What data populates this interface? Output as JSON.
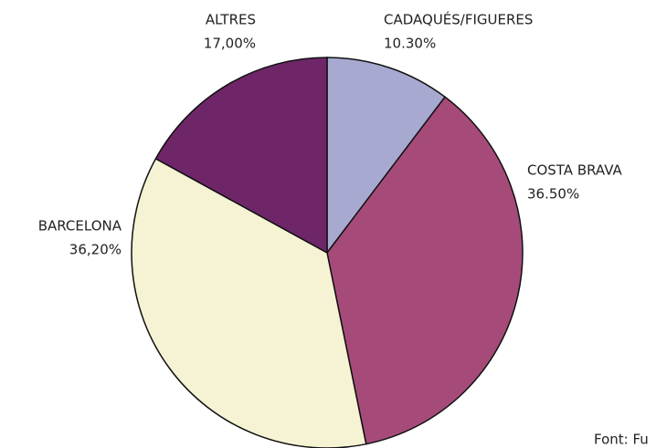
{
  "chart_data": {
    "type": "pie",
    "categories": [
      "CADAQUÉS/FIGUERES",
      "COSTA BRAVA",
      "BARCELONA",
      "ALTRES"
    ],
    "values": [
      10.3,
      36.5,
      36.2,
      17.0
    ],
    "value_labels": [
      "10.30%",
      "36.50%",
      "36,20%",
      "17,00%"
    ],
    "colors": [
      "#a8a9d1",
      "#a64b79",
      "#f5f3d3",
      "#6f2669"
    ],
    "source": "Font: Fu"
  }
}
